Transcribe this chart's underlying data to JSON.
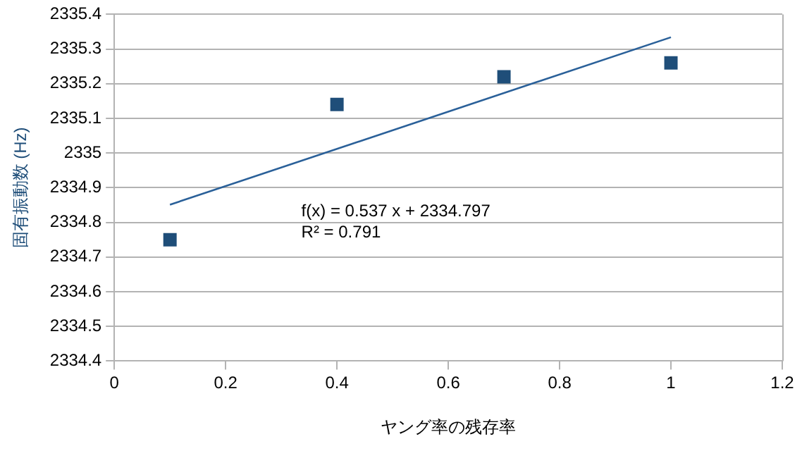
{
  "chart_data": {
    "type": "scatter",
    "xlabel": "ヤング率の残存率",
    "ylabel": "固有振動数 (Hz)",
    "xlim": [
      0,
      1.2
    ],
    "xticks": [
      0,
      0.2,
      0.4,
      0.6,
      0.8,
      1,
      1.2
    ],
    "ylim": [
      2334.4,
      2335.4
    ],
    "yticks": [
      2334.4,
      2334.5,
      2334.6,
      2334.7,
      2334.8,
      2334.9,
      2335,
      2335.1,
      2335.2,
      2335.3,
      2335.4
    ],
    "grid": "y",
    "legend": false,
    "marker": "square",
    "series": [
      {
        "color": "#1f4e79",
        "x": [
          0.1,
          0.4,
          0.7,
          1
        ],
        "values": [
          2334.75,
          2335.14,
          2335.22,
          2335.26
        ]
      },
      {
        "type": "line",
        "color": "#2a6099",
        "marker": "none",
        "x": [
          0.1,
          1
        ],
        "values": [
          2334.851,
          2335.334
        ]
      }
    ],
    "annotations": [
      "f(x) = 0.537 x + 2334.797",
      "R² = 0.791"
    ]
  }
}
